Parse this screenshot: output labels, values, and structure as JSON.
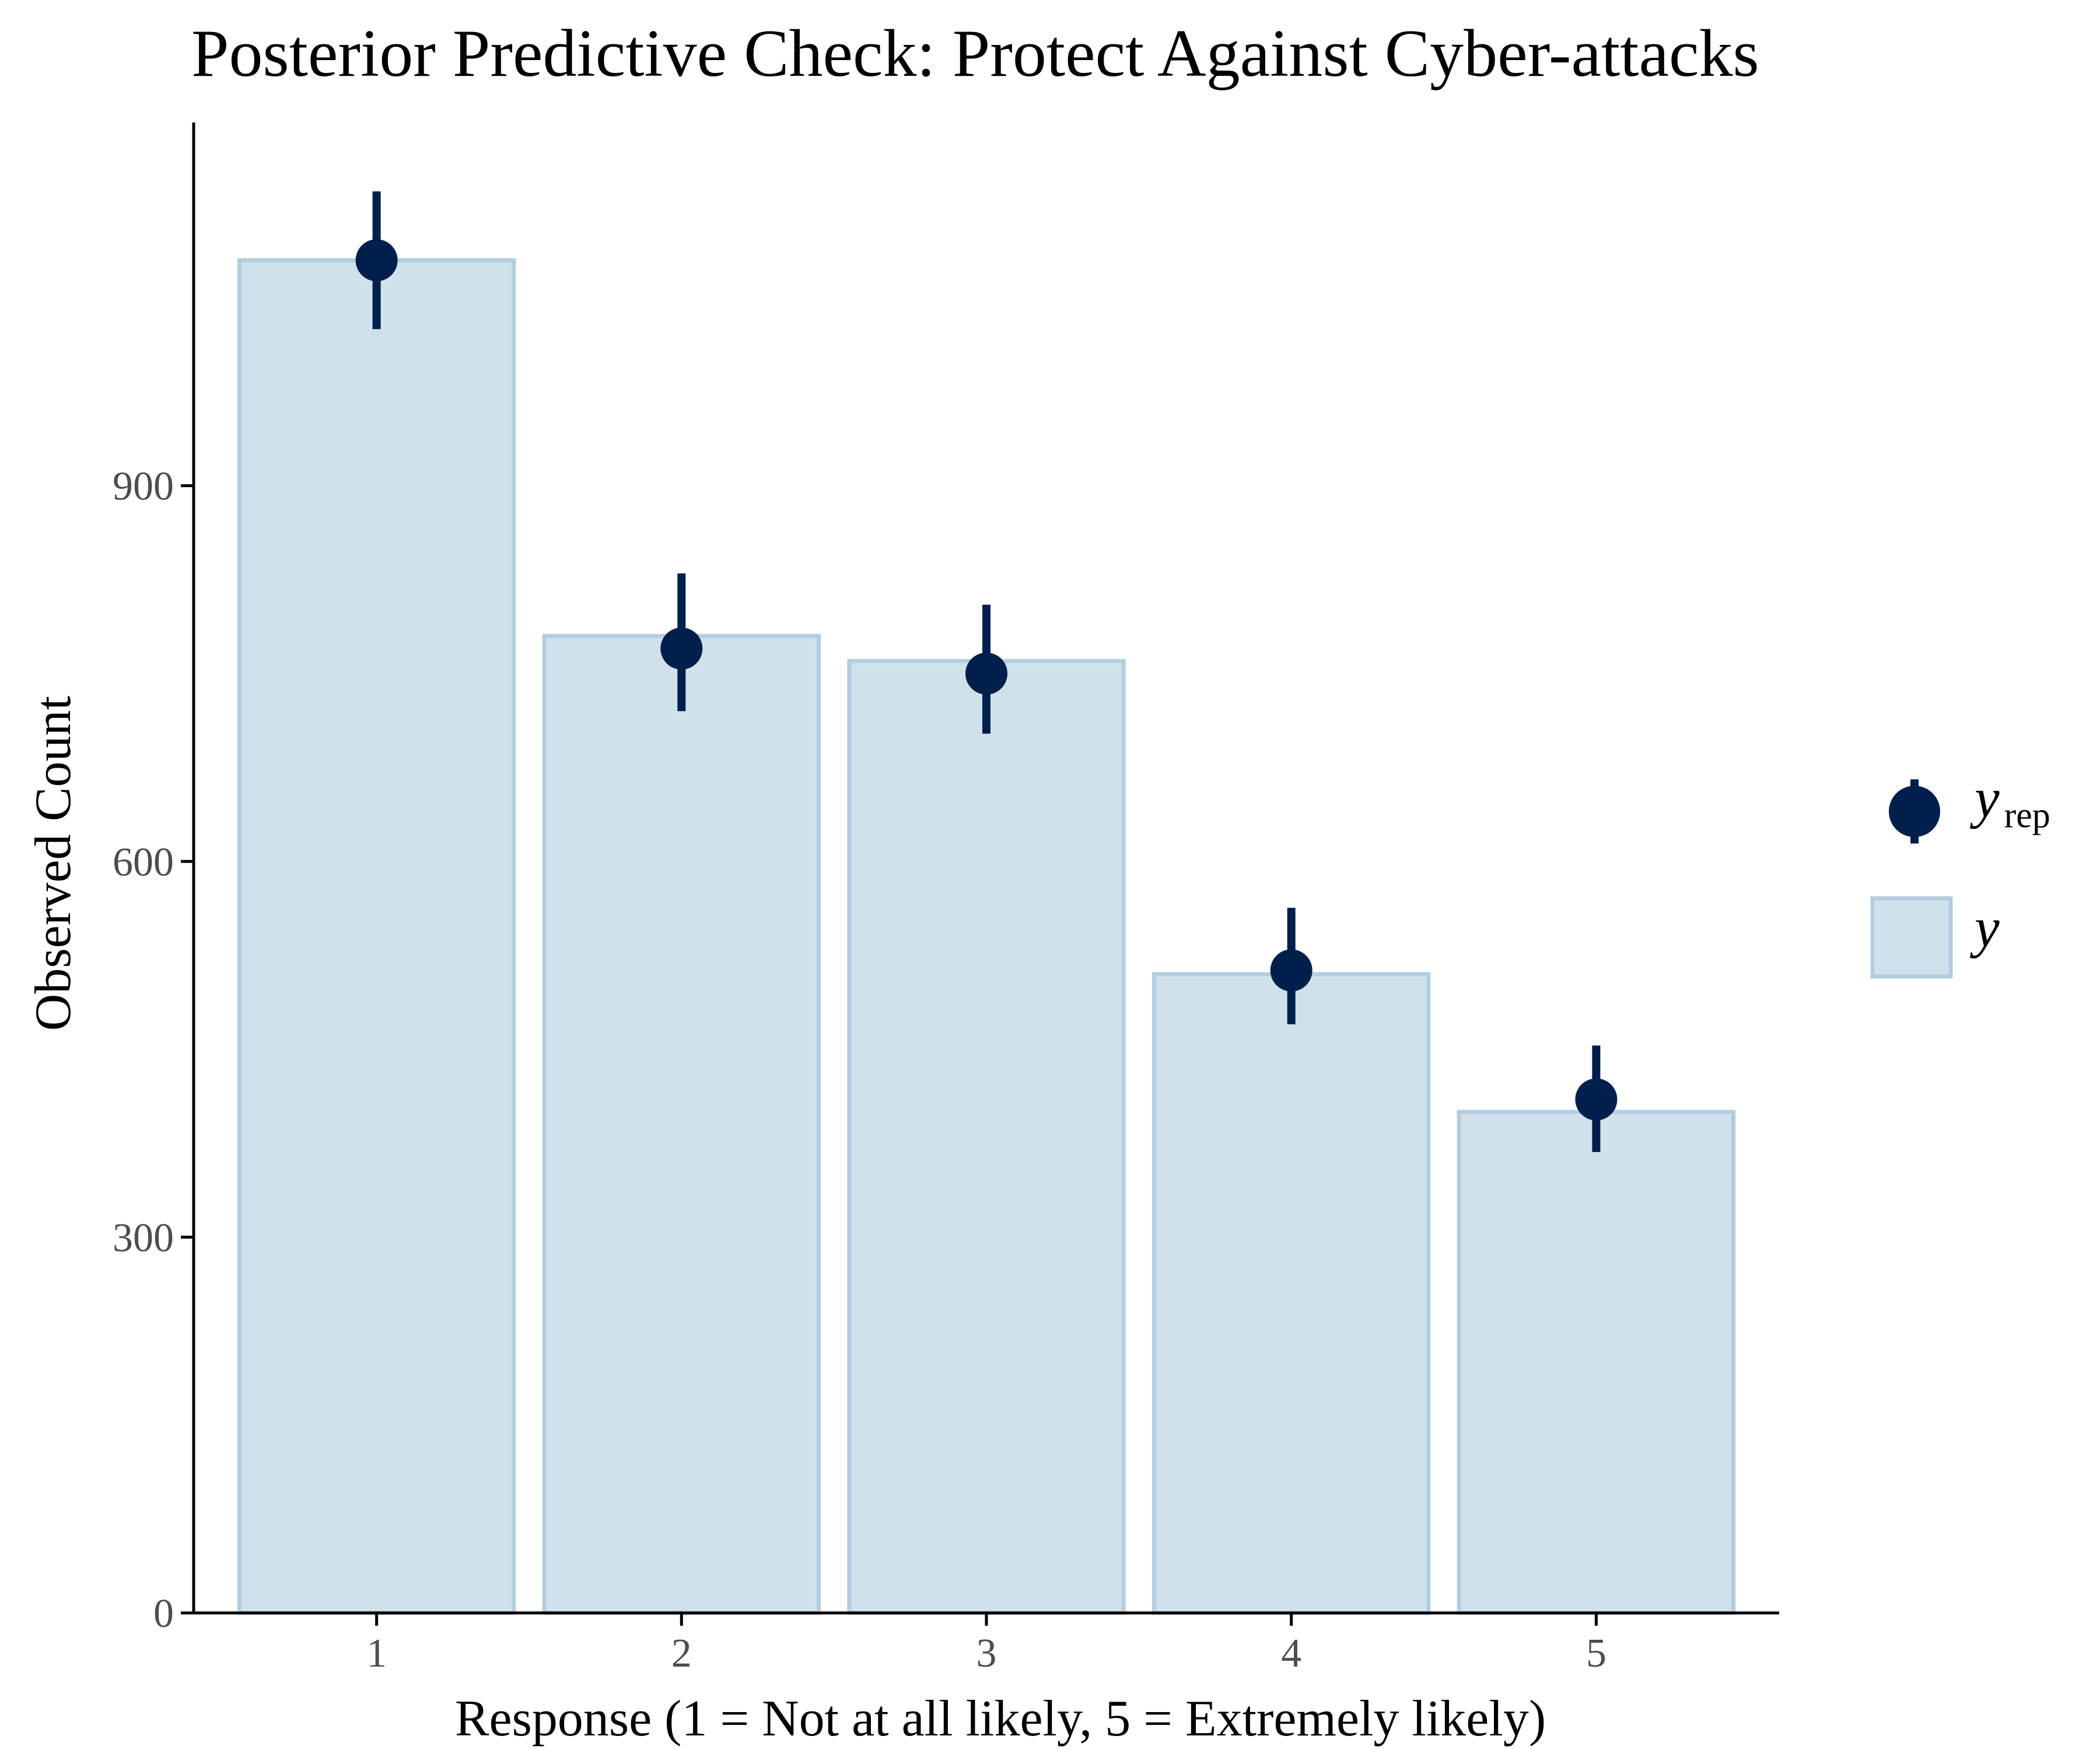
{
  "chart_data": {
    "type": "bar",
    "title": "Posterior Predictive Check: Protect Against Cyber-attacks",
    "xlabel": "Response (1 = Not at all likely, 5 = Extremely likely)",
    "ylabel": "Observed Count",
    "categories": [
      "1",
      "2",
      "3",
      "4",
      "5"
    ],
    "ylim": [
      0,
      1190
    ],
    "yticks": [
      0,
      300,
      600,
      900
    ],
    "ytick_labels": [
      "0",
      "300",
      "600",
      "900"
    ],
    "series": [
      {
        "name": "y",
        "kind": "bar",
        "values": [
          1080,
          780,
          760,
          510,
          400
        ]
      },
      {
        "name": "yrep",
        "kind": "pointrange",
        "median": [
          1080,
          770,
          750,
          513,
          410
        ],
        "lower": [
          1025,
          720,
          702,
          470,
          368
        ],
        "upper": [
          1135,
          830,
          805,
          563,
          453
        ]
      }
    ],
    "legend": {
      "position": "right",
      "entries": [
        {
          "symbol": "y",
          "subscript": "rep"
        },
        {
          "symbol": "y",
          "subscript": ""
        }
      ]
    },
    "colors": {
      "bar_fill": "#d1e1ec",
      "bar_stroke": "#b3cde0",
      "point": "#011f4b",
      "axis": "#000000",
      "tick_text": "#4d4d4d"
    },
    "grid": false
  }
}
